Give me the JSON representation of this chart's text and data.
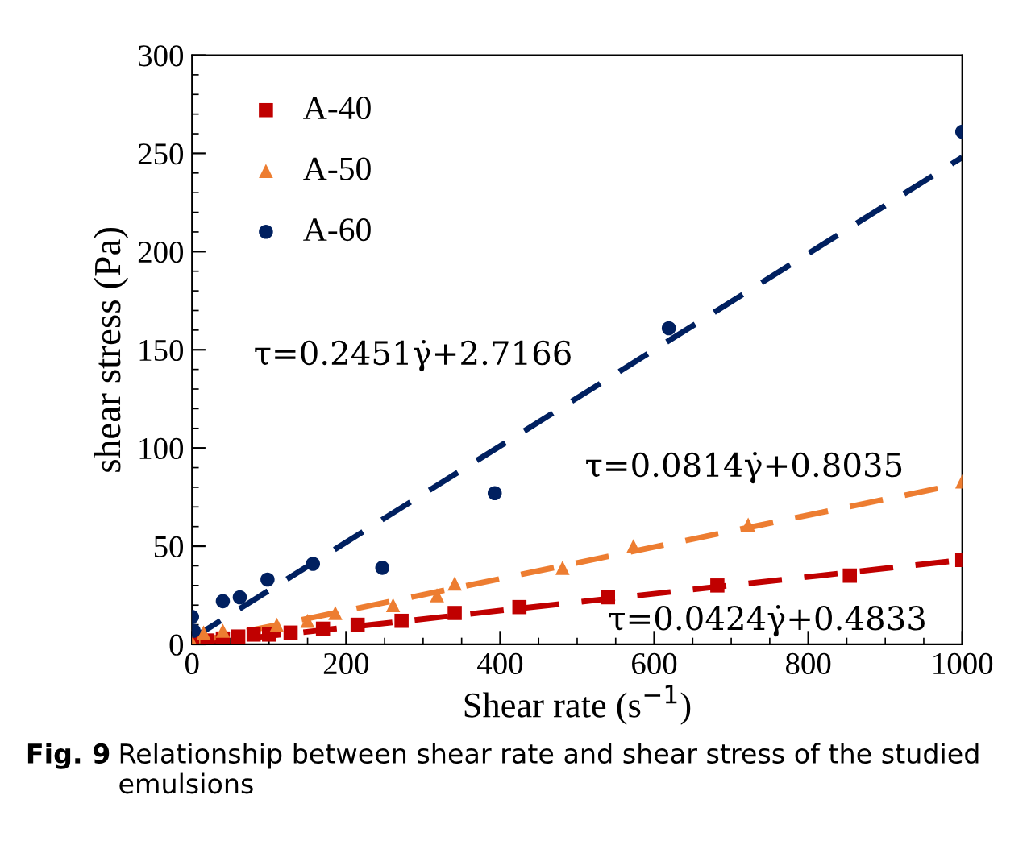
{
  "chart_data": {
    "type": "scatter",
    "xlabel": "Shear rate (s$^{−1}$)",
    "ylabel": "shear stress (Pa)",
    "xlim": [
      0,
      1000
    ],
    "xticks": [
      0,
      200,
      400,
      600,
      800,
      1000
    ],
    "ylim": [
      0,
      300
    ],
    "yticks": [
      0,
      50,
      100,
      150,
      200,
      250,
      300
    ],
    "legend": "top left",
    "grid": false,
    "series": [
      {
        "name": "A-40",
        "color": "#c00000",
        "marker": "square",
        "x": [
          0,
          20,
          40,
          60,
          80,
          100,
          128,
          170,
          215,
          272,
          341,
          425,
          540,
          682,
          854,
          1000
        ],
        "values": [
          1,
          2,
          3,
          4,
          5,
          5,
          6,
          8,
          10,
          12,
          16,
          19,
          24,
          30,
          35,
          43
        ]
      },
      {
        "name": "A-50",
        "color": "#ed7d31",
        "marker": "triangle",
        "x": [
          0,
          15,
          40,
          110,
          150,
          186,
          261,
          318,
          341,
          481,
          573,
          722,
          1000
        ],
        "values": [
          1,
          6,
          7,
          10,
          12,
          16,
          20,
          25,
          31,
          39,
          50,
          61,
          83
        ]
      },
      {
        "name": "A-60",
        "color": "#002060",
        "marker": "circle",
        "x": [
          0,
          2,
          40,
          62,
          98,
          157,
          247,
          393,
          619,
          1000
        ],
        "values": [
          14,
          7,
          22,
          24,
          33,
          41,
          39,
          77,
          161,
          261
        ]
      },
      {
        "type": "line",
        "color": "#c00000",
        "line_style": "dashed",
        "x": [
          0,
          1000
        ],
        "values": [
          0,
          43
        ]
      },
      {
        "type": "line",
        "color": "#ed7d31",
        "line_style": "dashed",
        "x": [
          0,
          1000
        ],
        "values": [
          1,
          82
        ]
      },
      {
        "type": "line",
        "color": "#002060",
        "line_style": "dashed",
        "x": [
          0,
          1000
        ],
        "values": [
          3,
          248
        ]
      }
    ],
    "annotations": [
      "τ=0.2451γ̇+2.7166",
      "τ=0.0814γ̇+0.8035",
      "τ=0.0424γ̇+0.4833",
      "Fig. 9",
      "Relationship between shear rate and shear stress of the studied emulsions"
    ]
  }
}
